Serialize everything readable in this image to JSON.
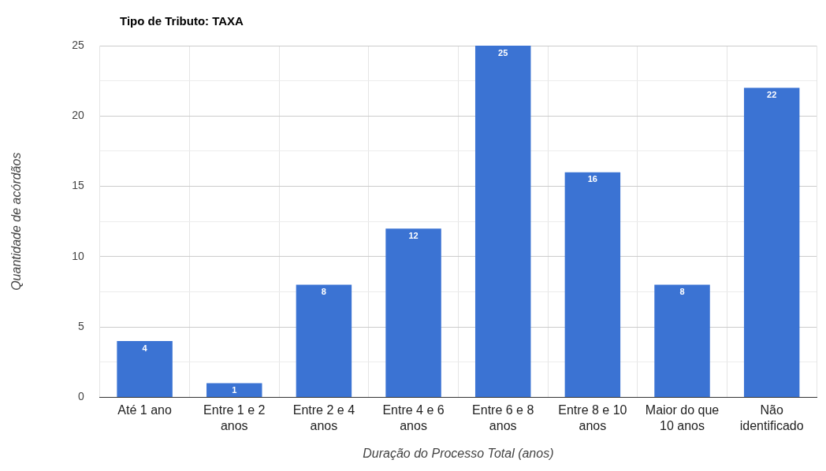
{
  "chart_data": {
    "type": "bar",
    "title": "Tipo de Tributo: TAXA",
    "xlabel": "Duração do Processo Total (anos)",
    "ylabel": "Quantidade de acórdãos",
    "categories": [
      "Até 1 ano",
      "Entre 1 e 2 anos",
      "Entre 2 e 4 anos",
      "Entre 4 e 6 anos",
      "Entre 6 e 8 anos",
      "Entre 8 e 10 anos",
      "Maior do que 10 anos",
      "Não identificado"
    ],
    "values": [
      4,
      1,
      8,
      12,
      25,
      16,
      8,
      22
    ],
    "color": "#3b73d3",
    "ylim": [
      0,
      25
    ],
    "yticks": [
      0,
      {
        "value": 2.5,
        "label": null
      },
      5,
      {
        "value": 7.5,
        "label": null
      },
      10,
      {
        "value": 12.5,
        "label": null
      },
      15,
      {
        "value": 17.5,
        "label": null
      },
      20,
      {
        "value": 22.5,
        "label": null
      },
      25
    ],
    "grid": true,
    "data_labels": true,
    "legend": false
  }
}
